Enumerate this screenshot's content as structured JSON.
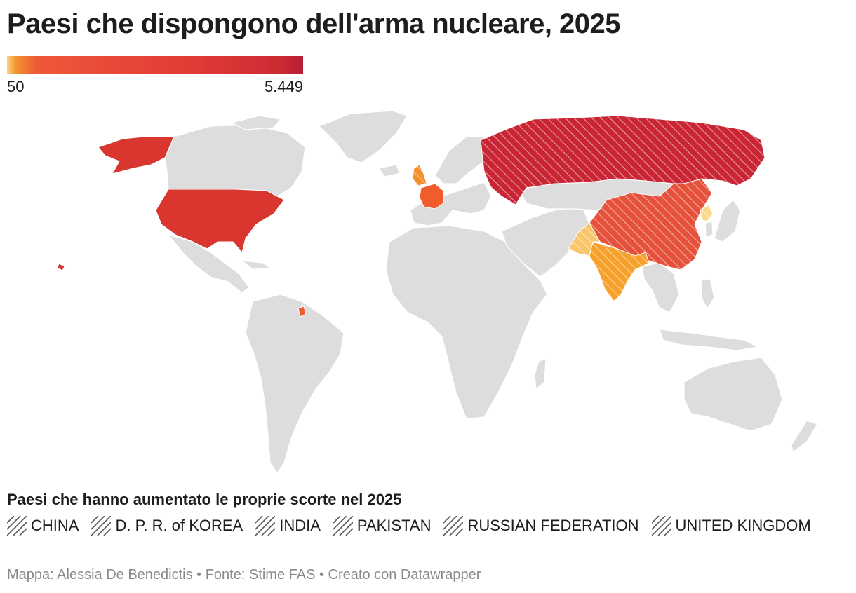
{
  "title": "Paesi che dispongono dell'arma nucleare, 2025",
  "scale": {
    "min_label": "50",
    "max_label": "5.449",
    "min": 50,
    "max": 5449,
    "colors": [
      "#fbd27a",
      "#f29432",
      "#ed5a35",
      "#e03a36",
      "#b51f34"
    ]
  },
  "map": {
    "land_color": "#dddddd",
    "regions": [
      {
        "name": "Russian Federation",
        "color": "#c92534",
        "hatched": true
      },
      {
        "name": "United States",
        "color": "#d9362f",
        "hatched": false
      },
      {
        "name": "China",
        "color": "#e5513a",
        "hatched": true
      },
      {
        "name": "France",
        "color": "#f05c2c",
        "hatched": false
      },
      {
        "name": "United Kingdom",
        "color": "#f3902c",
        "hatched": true
      },
      {
        "name": "India",
        "color": "#f6a12b",
        "hatched": true
      },
      {
        "name": "Pakistan",
        "color": "#f9c56a",
        "hatched": true
      },
      {
        "name": "D. P. R. of Korea",
        "color": "#fbd98a",
        "hatched": true
      }
    ]
  },
  "legend": {
    "title": "Paesi che hanno aumentato le proprie scorte nel 2025",
    "items": [
      "CHINA",
      "D. P. R. of KOREA",
      "INDIA",
      "PAKISTAN",
      "RUSSIAN FEDERATION",
      "UNITED KINGDOM"
    ]
  },
  "footer": "Mappa: Alessia De Benedictis • Fonte: Stime FAS • Creato con Datawrapper"
}
